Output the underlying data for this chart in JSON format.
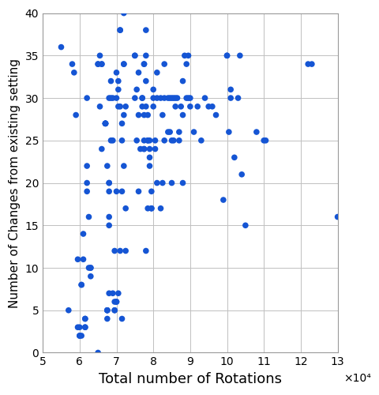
{
  "x": [
    55000,
    57000,
    58000,
    58500,
    59000,
    59500,
    59500,
    60000,
    60000,
    60000,
    60500,
    60500,
    60500,
    61000,
    61000,
    61500,
    61500,
    61500,
    61500,
    62000,
    62000,
    62000,
    62000,
    62500,
    62500,
    63000,
    63000,
    63000,
    65000,
    65000,
    65000,
    65500,
    65500,
    66000,
    66000,
    66000,
    67000,
    67000,
    67000,
    67000,
    67000,
    67500,
    67500,
    67500,
    67500,
    67500,
    68000,
    68000,
    68000,
    68000,
    68000,
    68000,
    68000,
    68500,
    68500,
    68500,
    69000,
    69000,
    69000,
    69500,
    69500,
    69500,
    69500,
    70000,
    70000,
    70000,
    70000,
    70000,
    70500,
    70500,
    70500,
    70500,
    71000,
    71000,
    71000,
    71000,
    71500,
    71500,
    71500,
    71500,
    72000,
    72000,
    72000,
    72000,
    72000,
    72500,
    72500,
    72500,
    75000,
    75000,
    75000,
    75500,
    75500,
    76000,
    76000,
    76000,
    76500,
    77000,
    77000,
    77000,
    77500,
    77500,
    77500,
    77500,
    77500,
    77500,
    78000,
    78000,
    78000,
    78000,
    78000,
    78500,
    78500,
    78500,
    78500,
    79000,
    79000,
    79000,
    79000,
    79500,
    79500,
    79500,
    80000,
    80000,
    80000,
    80500,
    80500,
    81000,
    81000,
    81000,
    82000,
    82000,
    82500,
    82500,
    83000,
    83000,
    83000,
    84000,
    84000,
    84500,
    84500,
    85000,
    85000,
    85000,
    85500,
    85500,
    86000,
    86000,
    86500,
    87000,
    87000,
    87500,
    88000,
    88000,
    88000,
    88500,
    89000,
    89000,
    89500,
    89500,
    90000,
    90000,
    91000,
    92000,
    93000,
    94000,
    95000,
    96000,
    97000,
    99000,
    100000,
    100000,
    100500,
    101000,
    101000,
    102000,
    103000,
    103500,
    104000,
    105000,
    108000,
    110000,
    110500,
    122000,
    123000,
    130000
  ],
  "y": [
    36,
    5,
    34,
    33,
    28,
    11,
    3,
    3,
    2,
    2,
    8,
    8,
    2,
    14,
    11,
    4,
    4,
    3,
    3,
    30,
    22,
    20,
    19,
    16,
    10,
    10,
    10,
    9,
    34,
    34,
    0,
    35,
    29,
    34,
    34,
    24,
    27,
    27,
    27,
    27,
    27,
    5,
    5,
    5,
    4,
    22,
    30,
    20,
    20,
    19,
    16,
    15,
    7,
    32,
    30,
    25,
    30,
    25,
    7,
    5,
    5,
    12,
    6,
    33,
    30,
    19,
    6,
    6,
    32,
    31,
    29,
    7,
    38,
    38,
    29,
    12,
    27,
    25,
    19,
    4,
    34,
    34,
    28,
    22,
    40,
    29,
    17,
    12,
    35,
    35,
    30,
    31,
    25,
    33,
    28,
    19,
    24,
    30,
    30,
    29,
    34,
    34,
    28,
    25,
    24,
    24,
    38,
    35,
    32,
    29,
    12,
    28,
    25,
    25,
    17,
    25,
    24,
    23,
    22,
    19,
    17,
    17,
    31,
    30,
    29,
    25,
    24,
    33,
    30,
    20,
    30,
    17,
    28,
    20,
    34,
    30,
    25,
    30,
    26,
    30,
    26,
    30,
    25,
    20,
    30,
    25,
    29,
    30,
    30,
    26,
    25,
    29,
    20,
    32,
    28,
    35,
    34,
    30,
    35,
    30,
    30,
    29,
    26,
    29,
    25,
    30,
    29,
    29,
    28,
    18,
    35,
    35,
    26,
    31,
    30,
    23,
    30,
    35,
    21,
    15,
    26,
    25,
    25,
    34,
    34,
    16
  ],
  "xlim": [
    50000,
    130000
  ],
  "ylim": [
    0,
    40
  ],
  "xlabel": "Total number of Rotations",
  "ylabel": "Number of Changes from existing setting",
  "xticks": [
    50000,
    60000,
    70000,
    80000,
    90000,
    100000,
    110000,
    120000,
    130000
  ],
  "yticks": [
    0,
    5,
    10,
    15,
    20,
    25,
    30,
    35,
    40
  ],
  "xtick_labels": [
    "5",
    "6",
    "7",
    "8",
    "9",
    "10",
    "11",
    "12",
    "13"
  ],
  "ytick_labels": [
    "0",
    "5",
    "10",
    "15",
    "20",
    "25",
    "30",
    "35",
    "40"
  ],
  "xscale_label": "×10⁴",
  "dot_color": "#1555d4",
  "dot_size": 30,
  "background_color": "#ffffff",
  "grid_color": "#c0c0c0",
  "grid_linewidth": 0.7,
  "spine_color": "#999999",
  "tick_fontsize": 10,
  "xlabel_fontsize": 13,
  "ylabel_fontsize": 11
}
